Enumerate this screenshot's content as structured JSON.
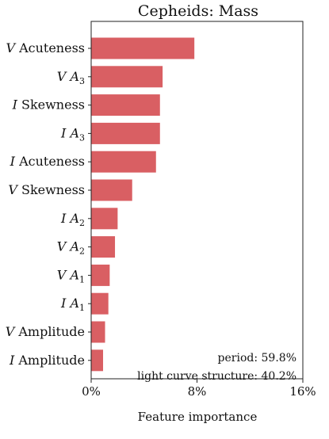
{
  "chart_data": {
    "type": "bar",
    "orientation": "horizontal",
    "title": "Cepheids: Mass",
    "xlabel": "Feature importance",
    "ylabel": "",
    "xlim": [
      0,
      16
    ],
    "xticks": [
      "0%",
      "8%",
      "16%"
    ],
    "grid": false,
    "color": "#d95f63",
    "categories": [
      {
        "band": "V",
        "name": "Acuteness",
        "sub": ""
      },
      {
        "band": "V",
        "name": "A",
        "sub": "3"
      },
      {
        "band": "I",
        "name": "Skewness",
        "sub": ""
      },
      {
        "band": "I",
        "name": "A",
        "sub": "3"
      },
      {
        "band": "I",
        "name": "Acuteness",
        "sub": ""
      },
      {
        "band": "V",
        "name": "Skewness",
        "sub": ""
      },
      {
        "band": "I",
        "name": "A",
        "sub": "2"
      },
      {
        "band": "V",
        "name": "A",
        "sub": "2"
      },
      {
        "band": "V",
        "name": "A",
        "sub": "1"
      },
      {
        "band": "I",
        "name": "A",
        "sub": "1"
      },
      {
        "band": "V",
        "name": "Amplitude",
        "sub": ""
      },
      {
        "band": "I",
        "name": "Amplitude",
        "sub": ""
      }
    ],
    "values": [
      7.8,
      5.4,
      5.2,
      5.2,
      4.9,
      3.1,
      2.0,
      1.8,
      1.4,
      1.3,
      1.05,
      0.9
    ],
    "annotations": [
      "period: 59.8%",
      "light curve structure: 40.2%"
    ]
  }
}
